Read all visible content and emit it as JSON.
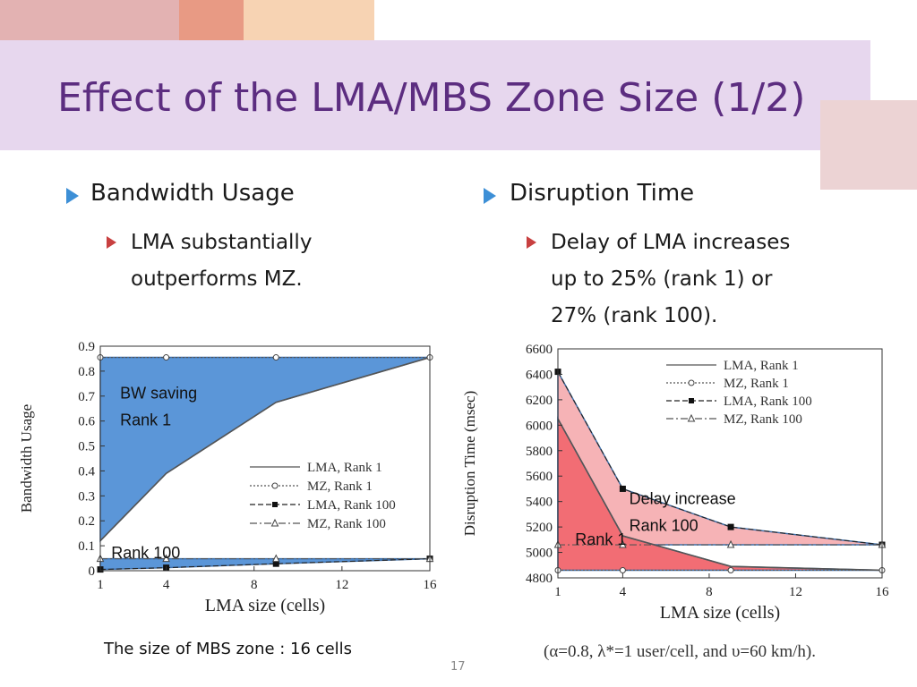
{
  "slide": {
    "title": "Effect of the LMA/MBS Zone Size (1/2)",
    "number": "17",
    "colors": {
      "title": "#5c2d80",
      "band": "#e7d7ee",
      "bullet1": "#3d8fd6",
      "bullet2": "#c84040"
    }
  },
  "left_column": {
    "heading": "Bandwidth Usage",
    "sub_lines": [
      "LMA substantially",
      "outperforms MZ."
    ],
    "caption": "The size of MBS zone : 16 cells"
  },
  "right_column": {
    "heading": "Disruption Time",
    "sub_lines": [
      "Delay of LMA increases",
      "up to 25% (rank 1) or",
      "27% (rank 100)."
    ],
    "footnote": "(α=0.8, λ*=1 user/cell, and υ=60 km/h)."
  },
  "chart_data": [
    {
      "type": "line",
      "xlabel": "LMA size (cells)",
      "ylabel": "Bandwidth Usage",
      "xlim": [
        1,
        16
      ],
      "ylim": [
        0,
        0.9
      ],
      "xticks": [
        "1",
        "4",
        "8",
        "12",
        "16"
      ],
      "yticks": [
        "0",
        "0.1",
        "0.2",
        "0.3",
        "0.4",
        "0.5",
        "0.6",
        "0.7",
        "0.8",
        "0.9"
      ],
      "grid": false,
      "legend_position": "bottom-right",
      "series": [
        {
          "name": "LMA, Rank 1",
          "x": [
            1,
            4,
            9,
            16
          ],
          "y": [
            0.12,
            0.39,
            0.675,
            0.855
          ],
          "style": "solid",
          "marker": "none"
        },
        {
          "name": "MZ, Rank 1",
          "x": [
            1,
            4,
            9,
            16
          ],
          "y": [
            0.855,
            0.855,
            0.855,
            0.855
          ],
          "style": "dotted",
          "marker": "circle"
        },
        {
          "name": "LMA, Rank 100",
          "x": [
            1,
            4,
            9,
            16
          ],
          "y": [
            0.005,
            0.012,
            0.028,
            0.048
          ],
          "style": "dashed",
          "marker": "square"
        },
        {
          "name": "MZ, Rank 100",
          "x": [
            1,
            4,
            9,
            16
          ],
          "y": [
            0.048,
            0.048,
            0.048,
            0.048
          ],
          "style": "dashdot",
          "marker": "triangle"
        }
      ],
      "shaded_regions": [
        {
          "upper": "MZ, Rank 1",
          "lower": "LMA, Rank 1",
          "color": "#5b96d8"
        },
        {
          "upper": "MZ, Rank 100",
          "lower": "LMA, Rank 100",
          "color": "#5b96d8"
        }
      ],
      "annotations": [
        {
          "lines": [
            "BW saving",
            "Rank 1"
          ],
          "x": 1.9,
          "y": 0.69
        },
        {
          "lines": [
            "Rank 100"
          ],
          "x": 1.5,
          "y": 0.05
        }
      ]
    },
    {
      "type": "line",
      "xlabel": "LMA size (cells)",
      "ylabel": "Disruption Time (msec)",
      "xlim": [
        1,
        16
      ],
      "ylim": [
        4800,
        6600
      ],
      "xticks": [
        "1",
        "4",
        "8",
        "12",
        "16"
      ],
      "yticks": [
        "4800",
        "5000",
        "5200",
        "5400",
        "5600",
        "5800",
        "6000",
        "6200",
        "6400",
        "6600"
      ],
      "grid": false,
      "legend_position": "top-right",
      "series": [
        {
          "name": "LMA, Rank 1",
          "x": [
            1,
            4,
            9,
            16
          ],
          "y": [
            6050,
            5130,
            4890,
            4860
          ],
          "style": "solid",
          "marker": "none"
        },
        {
          "name": "MZ, Rank 1",
          "x": [
            1,
            4,
            9,
            16
          ],
          "y": [
            4860,
            4860,
            4860,
            4860
          ],
          "style": "dotted",
          "marker": "circle"
        },
        {
          "name": "LMA, Rank 100",
          "x": [
            1,
            4,
            9,
            16
          ],
          "y": [
            6420,
            5500,
            5200,
            5060
          ],
          "style": "dashed",
          "marker": "square"
        },
        {
          "name": "MZ, Rank 100",
          "x": [
            1,
            4,
            9,
            16
          ],
          "y": [
            5060,
            5060,
            5060,
            5060
          ],
          "style": "dashdot",
          "marker": "triangle"
        }
      ],
      "shaded_regions": [
        {
          "upper": "LMA, Rank 100",
          "lower": "MZ, Rank 100",
          "color": "#f6b3b6"
        },
        {
          "upper": "LMA, Rank 1",
          "lower": "MZ, Rank 1",
          "color": "#f26d74"
        }
      ],
      "annotations": [
        {
          "lines": [
            "Delay increase",
            "Rank 100"
          ],
          "x": 4.3,
          "y": 5380
        },
        {
          "lines": [
            "Rank 1"
          ],
          "x": 1.8,
          "y": 5060
        }
      ]
    }
  ]
}
